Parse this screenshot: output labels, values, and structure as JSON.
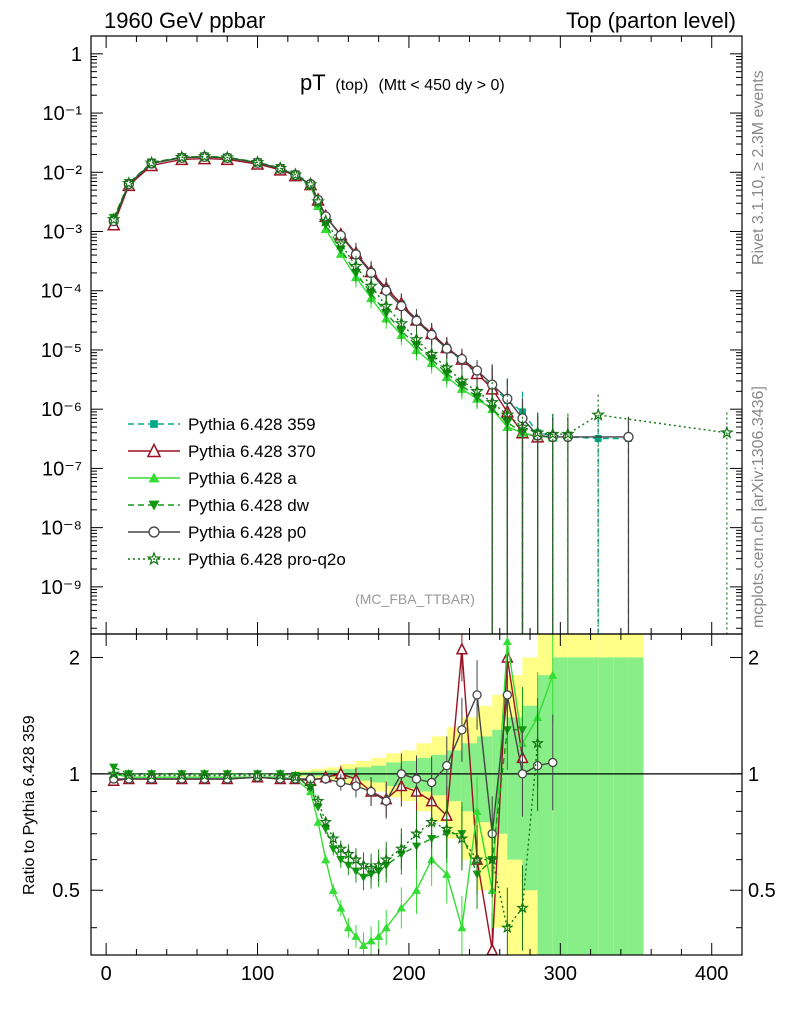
{
  "header": {
    "left": "1960 GeV ppbar",
    "right": "Top (parton level)"
  },
  "plot_title": {
    "main": "pT",
    "sub1": "(top)",
    "sub2": "(Mtt < 450 dy > 0)"
  },
  "side_labels": {
    "rivet": "Rivet 3.1.10, ≥ 2.3M events",
    "mcplots": "mcplots.cern.ch [arXiv:1306.3436]"
  },
  "analysis_tag": "(MC_FBA_TTBAR)",
  "ratio_ylabel": "Ratio to Pythia 6.428 359",
  "colors": {
    "c359": "#00aa88",
    "c370": "#991122",
    "ca": "#33dd33",
    "cdw": "#119911",
    "cp0": "#444444",
    "cpro": "#117711",
    "band_yellow": "#ffff88",
    "band_green": "#88ee88"
  },
  "chart_data": {
    "type": "line",
    "xlabel": "",
    "ylabel": "",
    "xlim": [
      -10,
      420
    ],
    "main_ylog": true,
    "main_ylim": [
      1.6e-10,
      2.0
    ],
    "ratio_ylim": [
      0.34,
      2.3
    ],
    "x_ticks": [
      "0",
      "100",
      "200",
      "300",
      "400"
    ],
    "main_y_ticks": [
      "1",
      "10⁻¹",
      "10⁻²",
      "10⁻³",
      "10⁻⁴",
      "10⁻⁵",
      "10⁻⁶",
      "10⁻⁷",
      "10⁻⁸",
      "10⁻⁹"
    ],
    "ratio_y_ticks": [
      "0.5",
      "1",
      "2"
    ],
    "ratio_y_tick_values": [
      0.5,
      1,
      2
    ],
    "legend": [
      {
        "name": "Pythia 6.428 359",
        "style": "dashed",
        "marker": "square",
        "color": "#00aa88"
      },
      {
        "name": "Pythia 6.428 370",
        "style": "solid",
        "marker": "triangle-open",
        "color": "#991122"
      },
      {
        "name": "Pythia 6.428 a",
        "style": "solid",
        "marker": "triangle",
        "color": "#33dd33"
      },
      {
        "name": "Pythia 6.428 dw",
        "style": "dashed",
        "marker": "triangle-down",
        "color": "#119911"
      },
      {
        "name": "Pythia 6.428 p0",
        "style": "solid",
        "marker": "circle-open",
        "color": "#444444"
      },
      {
        "name": "Pythia 6.428 pro-q2o",
        "style": "dotted",
        "marker": "star",
        "color": "#117711"
      }
    ],
    "series": [
      {
        "name": "Pythia 6.428 359",
        "x": [
          5,
          15,
          30,
          50,
          65,
          80,
          100,
          115,
          125,
          135,
          140,
          145,
          155,
          165,
          175,
          185,
          195,
          205,
          215,
          225,
          235,
          245,
          255,
          265,
          275,
          285,
          295,
          305,
          325,
          345
        ],
        "y": [
          0.0016,
          0.0065,
          0.0145,
          0.018,
          0.0185,
          0.0178,
          0.0148,
          0.0118,
          0.0093,
          0.0065,
          0.0035,
          0.0018,
          0.00085,
          0.00042,
          0.00021,
          0.00011,
          6e-05,
          3.3e-05,
          1.9e-05,
          1.1e-05,
          6.5e-06,
          4e-06,
          2.4e-06,
          1.4e-06,
          9e-07,
          4e-07,
          3.6e-07,
          3.4e-07,
          3.2e-07,
          3.2e-07
        ]
      },
      {
        "name": "Pythia 6.428 370",
        "x": [
          5,
          15,
          30,
          50,
          65,
          80,
          100,
          115,
          125,
          135,
          140,
          145,
          155,
          165,
          175,
          185,
          195,
          205,
          215,
          225,
          235,
          245,
          255,
          265,
          275,
          285
        ],
        "y": [
          0.0013,
          0.006,
          0.013,
          0.0165,
          0.017,
          0.0165,
          0.0138,
          0.011,
          0.0088,
          0.0062,
          0.0034,
          0.0018,
          0.00088,
          0.00043,
          0.00021,
          0.00011,
          6e-05,
          3.2e-05,
          1.9e-05,
          1.1e-05,
          7e-06,
          4e-06,
          2.2e-06,
          9e-07,
          4e-07,
          3.4e-07
        ]
      },
      {
        "name": "Pythia 6.428 a",
        "x": [
          5,
          15,
          30,
          50,
          65,
          80,
          100,
          115,
          125,
          135,
          140,
          145,
          155,
          165,
          175,
          185,
          195,
          205,
          215,
          225,
          235,
          245,
          255,
          265,
          275,
          285,
          295
        ],
        "y": [
          0.0016,
          0.0064,
          0.0142,
          0.0178,
          0.0183,
          0.0176,
          0.0146,
          0.0116,
          0.0091,
          0.006,
          0.0027,
          0.0011,
          0.00042,
          0.00017,
          7.5e-05,
          3.4e-05,
          1.8e-05,
          1e-05,
          6e-06,
          3.5e-06,
          2.2e-06,
          1.5e-06,
          1e-06,
          5e-07,
          4e-07,
          3.5e-07,
          3.3e-07
        ]
      },
      {
        "name": "Pythia 6.428 dw",
        "x": [
          5,
          15,
          30,
          50,
          65,
          80,
          100,
          115,
          125,
          135,
          140,
          145,
          155,
          165,
          175,
          185,
          195,
          205,
          215,
          225,
          235,
          245,
          255,
          265,
          275
        ],
        "y": [
          0.0017,
          0.0066,
          0.0146,
          0.018,
          0.0186,
          0.0178,
          0.0148,
          0.0118,
          0.0092,
          0.0061,
          0.003,
          0.0013,
          0.0005,
          0.0002,
          9e-05,
          4.2e-05,
          2.1e-05,
          1.2e-05,
          7e-06,
          4e-06,
          2.5e-06,
          1.6e-06,
          1e-06,
          6e-07,
          4e-07
        ]
      },
      {
        "name": "Pythia 6.428 p0",
        "x": [
          5,
          15,
          30,
          50,
          65,
          80,
          100,
          115,
          125,
          135,
          140,
          145,
          155,
          165,
          175,
          185,
          195,
          205,
          215,
          225,
          235,
          245,
          255,
          265,
          275,
          285,
          295,
          305,
          345
        ],
        "y": [
          0.0015,
          0.0063,
          0.0141,
          0.0176,
          0.0182,
          0.0175,
          0.0145,
          0.0115,
          0.009,
          0.0063,
          0.0034,
          0.0018,
          0.00086,
          0.00041,
          0.0002,
          0.0001,
          5.5e-05,
          3.1e-05,
          1.8e-05,
          1.05e-05,
          7e-06,
          4.5e-06,
          2.6e-06,
          1.5e-06,
          7e-07,
          3.6e-07,
          3.4e-07,
          3.4e-07,
          3.4e-07
        ]
      },
      {
        "name": "Pythia 6.428 pro-q2o",
        "x": [
          5,
          15,
          30,
          50,
          65,
          80,
          100,
          115,
          125,
          135,
          140,
          145,
          155,
          165,
          175,
          185,
          195,
          205,
          215,
          225,
          235,
          245,
          255,
          265,
          275,
          285,
          295,
          305,
          325,
          410
        ],
        "y": [
          0.0016,
          0.0065,
          0.0144,
          0.0179,
          0.0185,
          0.0177,
          0.0147,
          0.0117,
          0.0091,
          0.0062,
          0.0032,
          0.0015,
          0.00062,
          0.00026,
          0.00012,
          5.5e-05,
          2.8e-05,
          1.5e-05,
          8.5e-06,
          5e-06,
          3e-06,
          2e-06,
          1.3e-06,
          8e-07,
          5e-07,
          4e-07,
          3.8e-07,
          3.8e-07,
          8e-07,
          4e-07
        ]
      }
    ],
    "ratio_series": [
      {
        "name": "Pythia 6.428 370",
        "x": [
          5,
          15,
          30,
          50,
          65,
          80,
          100,
          115,
          125,
          135,
          145,
          155,
          165,
          175,
          185,
          195,
          205,
          215,
          225,
          235,
          245,
          255,
          265,
          275
        ],
        "y": [
          0.96,
          0.97,
          0.97,
          0.97,
          0.97,
          0.97,
          0.98,
          0.97,
          0.97,
          0.96,
          0.98,
          1.0,
          0.97,
          0.9,
          0.86,
          0.93,
          0.9,
          0.85,
          0.78,
          2.1,
          0.6,
          0.35,
          2.0,
          1.1
        ]
      },
      {
        "name": "Pythia 6.428 a",
        "x": [
          5,
          15,
          30,
          50,
          65,
          80,
          100,
          115,
          125,
          135,
          140,
          145,
          150,
          155,
          160,
          165,
          170,
          175,
          180,
          185,
          195,
          205,
          215,
          225,
          235,
          245,
          255,
          265,
          275,
          285,
          295
        ],
        "y": [
          1.0,
          0.98,
          0.98,
          0.98,
          0.98,
          0.98,
          0.98,
          0.98,
          0.97,
          0.9,
          0.75,
          0.6,
          0.5,
          0.45,
          0.4,
          0.38,
          0.36,
          0.37,
          0.38,
          0.4,
          0.45,
          0.5,
          0.6,
          0.55,
          0.4,
          0.8,
          0.5,
          2.2,
          1.2,
          1.4,
          1.8
        ]
      },
      {
        "name": "Pythia 6.428 dw",
        "x": [
          5,
          15,
          30,
          50,
          65,
          80,
          100,
          115,
          125,
          135,
          140,
          145,
          150,
          155,
          160,
          165,
          170,
          175,
          180,
          185,
          195,
          205,
          215,
          225,
          235,
          245,
          255,
          265,
          275
        ],
        "y": [
          1.04,
          1.0,
          1.0,
          1.0,
          1.0,
          1.0,
          1.0,
          1.0,
          0.99,
          0.92,
          0.82,
          0.72,
          0.64,
          0.6,
          0.58,
          0.56,
          0.54,
          0.55,
          0.56,
          0.58,
          0.62,
          0.65,
          0.68,
          0.7,
          0.7,
          0.55,
          0.6,
          1.3,
          1.3
        ]
      },
      {
        "name": "Pythia 6.428 p0",
        "x": [
          5,
          15,
          30,
          50,
          65,
          80,
          100,
          115,
          125,
          135,
          145,
          155,
          165,
          175,
          185,
          195,
          205,
          215,
          225,
          235,
          245,
          255,
          265,
          275,
          285,
          295
        ],
        "y": [
          0.97,
          0.97,
          0.97,
          0.97,
          0.97,
          0.97,
          0.98,
          0.97,
          0.97,
          0.97,
          0.97,
          0.95,
          0.93,
          0.9,
          0.85,
          1.0,
          0.97,
          0.95,
          1.05,
          1.3,
          1.6,
          0.7,
          1.6,
          1.0,
          1.05,
          1.07
        ]
      },
      {
        "name": "Pythia 6.428 pro-q2o",
        "x": [
          5,
          15,
          30,
          50,
          65,
          80,
          100,
          115,
          125,
          135,
          140,
          145,
          150,
          155,
          160,
          165,
          170,
          175,
          180,
          185,
          195,
          205,
          215,
          225,
          235,
          245,
          255,
          265,
          275,
          285
        ],
        "y": [
          1.0,
          0.99,
          0.99,
          0.99,
          0.99,
          0.99,
          0.99,
          0.99,
          0.98,
          0.93,
          0.85,
          0.75,
          0.68,
          0.64,
          0.62,
          0.6,
          0.58,
          0.57,
          0.58,
          0.6,
          0.64,
          0.7,
          0.75,
          0.72,
          0.68,
          0.6,
          0.6,
          0.4,
          0.45,
          1.2
        ]
      }
    ],
    "ratio_bands": {
      "x": [
        130,
        140,
        150,
        160,
        170,
        180,
        190,
        200,
        210,
        220,
        230,
        240,
        250,
        260,
        270,
        280,
        290,
        300,
        310,
        320,
        330,
        340,
        350
      ],
      "yellow_hi": [
        1.02,
        1.03,
        1.04,
        1.06,
        1.08,
        1.1,
        1.13,
        1.15,
        1.2,
        1.25,
        1.32,
        1.4,
        1.5,
        1.6,
        1.8,
        2.0,
        2.3,
        2.3,
        2.3,
        2.3,
        2.3,
        2.3,
        2.3
      ],
      "yellow_lo": [
        0.98,
        0.97,
        0.96,
        0.94,
        0.92,
        0.9,
        0.87,
        0.85,
        0.8,
        0.75,
        0.68,
        0.6,
        0.5,
        0.4,
        0.34,
        0.34,
        0.34,
        0.34,
        0.34,
        0.34,
        0.34,
        0.34,
        0.34
      ],
      "green_hi": [
        1.01,
        1.015,
        1.02,
        1.03,
        1.04,
        1.05,
        1.07,
        1.08,
        1.1,
        1.12,
        1.15,
        1.2,
        1.25,
        1.3,
        1.4,
        1.5,
        1.8,
        2.0,
        2.0,
        2.0,
        2.0,
        2.0,
        2.0
      ],
      "green_lo": [
        0.99,
        0.985,
        0.98,
        0.97,
        0.96,
        0.95,
        0.93,
        0.92,
        0.9,
        0.88,
        0.85,
        0.8,
        0.75,
        0.7,
        0.6,
        0.5,
        0.34,
        0.34,
        0.34,
        0.34,
        0.34,
        0.34,
        0.34
      ]
    }
  }
}
